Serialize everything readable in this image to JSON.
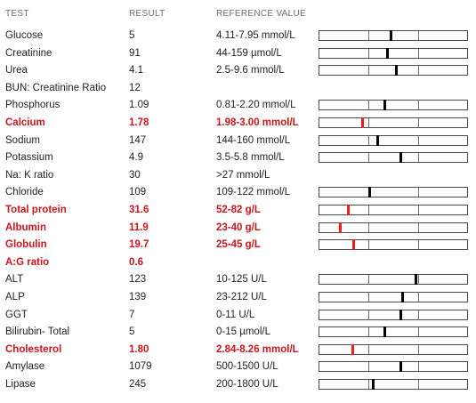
{
  "headers": {
    "test": "TEST",
    "result": "RESULT",
    "reference": "REFERENCE VALUE"
  },
  "colors": {
    "abnormal": "#c8161d",
    "marker_normal": "#000000",
    "marker_abnormal": "#e8211d"
  },
  "rows": [
    {
      "test": "Glucose",
      "result": "5",
      "reference": "4.11-7.95 mmol/L",
      "abnormal": false,
      "bar": true,
      "level": 0.48
    },
    {
      "test": "Creatinine",
      "result": "91",
      "reference": "44-159 µmol/L",
      "abnormal": false,
      "bar": true,
      "level": 0.46
    },
    {
      "test": "Urea",
      "result": "4.1",
      "reference": "2.5-9.6 mmol/L",
      "abnormal": false,
      "bar": true,
      "level": 0.52
    },
    {
      "test": "BUN: Creatinine Ratio",
      "result": "12",
      "reference": "",
      "abnormal": false,
      "bar": false
    },
    {
      "test": "Phosphorus",
      "result": "1.09",
      "reference": "0.81-2.20 mmol/L",
      "abnormal": false,
      "bar": true,
      "level": 0.44
    },
    {
      "test": "Calcium",
      "result": "1.78",
      "reference": "1.98-3.00 mmol/L",
      "abnormal": true,
      "bar": true,
      "level": 0.29
    },
    {
      "test": "Sodium",
      "result": "147",
      "reference": "144-160 mmol/L",
      "abnormal": false,
      "bar": true,
      "level": 0.39
    },
    {
      "test": "Potassium",
      "result": "4.9",
      "reference": "3.5-5.8 mmol/L",
      "abnormal": false,
      "bar": true,
      "level": 0.55
    },
    {
      "test": "Na: K ratio",
      "result": "30",
      "reference": ">27 mmol/L",
      "abnormal": false,
      "bar": false
    },
    {
      "test": "Chloride",
      "result": "109",
      "reference": "109-122 mmol/L",
      "abnormal": false,
      "bar": true,
      "level": 0.34
    },
    {
      "test": "Total protein",
      "result": "31.6",
      "reference": "52-82 g/L",
      "abnormal": true,
      "bar": true,
      "level": 0.19
    },
    {
      "test": "Albumin",
      "result": "11.9",
      "reference": "23-40 g/L",
      "abnormal": true,
      "bar": true,
      "level": 0.14
    },
    {
      "test": "Globulin",
      "result": "19.7",
      "reference": "25-45 g/L",
      "abnormal": true,
      "bar": true,
      "level": 0.23
    },
    {
      "test": "A:G ratio",
      "result": "0.6",
      "reference": "",
      "abnormal": true,
      "bar": false
    },
    {
      "test": "ALT",
      "result": "123",
      "reference": "10-125 U/L",
      "abnormal": false,
      "bar": true,
      "level": 0.65
    },
    {
      "test": "ALP",
      "result": "139",
      "reference": "23-212 U/L",
      "abnormal": false,
      "bar": true,
      "level": 0.56
    },
    {
      "test": "GGT",
      "result": "7",
      "reference": "0-11 U/L",
      "abnormal": false,
      "bar": true,
      "level": 0.55
    },
    {
      "test": "Bilirubin- Total",
      "result": "5",
      "reference": "0-15 µmol/L",
      "abnormal": false,
      "bar": true,
      "level": 0.44
    },
    {
      "test": "Cholesterol",
      "result": "1.80",
      "reference": "2.84-8.26 mmol/L",
      "abnormal": true,
      "bar": true,
      "level": 0.22
    },
    {
      "test": "Amylase",
      "result": "1079",
      "reference": "500-1500 U/L",
      "abnormal": false,
      "bar": true,
      "level": 0.55
    },
    {
      "test": "Lipase",
      "result": "245",
      "reference": "200-1800 U/L",
      "abnormal": false,
      "bar": true,
      "level": 0.36
    }
  ]
}
